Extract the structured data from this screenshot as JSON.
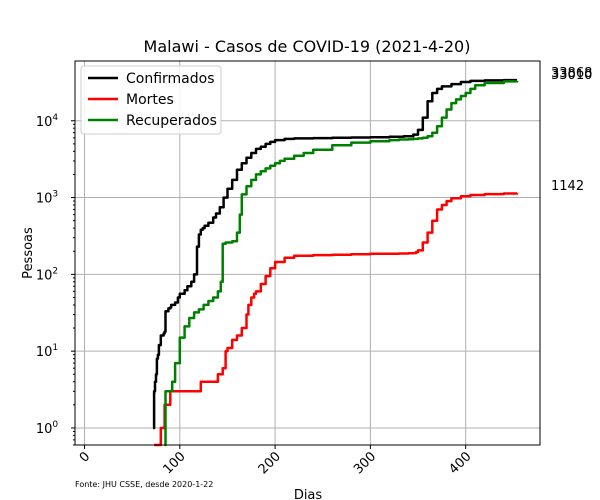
{
  "chart_data": {
    "type": "line",
    "title": "Malawi - Casos de COVID-19 (2021-4-20)",
    "xlabel": "Dias",
    "ylabel": "Pessoas",
    "yscale": "log",
    "xlim": [
      -10,
      478
    ],
    "ylim": [
      0.6,
      60000
    ],
    "grid": true,
    "legend_position": "top-left",
    "x_ticks": [
      0,
      100,
      200,
      300,
      400
    ],
    "x_tick_rotation": 45,
    "y_ticks": [
      {
        "value": 1,
        "base": "10",
        "exp": "0"
      },
      {
        "value": 10,
        "base": "10",
        "exp": "1"
      },
      {
        "value": 100,
        "base": "10",
        "exp": "2"
      },
      {
        "value": 1000,
        "base": "10",
        "exp": "3"
      },
      {
        "value": 10000,
        "base": "10",
        "exp": "4"
      }
    ],
    "series": [
      {
        "name": "Confirmados",
        "color": "#000000",
        "x": [
          72,
          73,
          74,
          75,
          76,
          77,
          78,
          80,
          83,
          84,
          85,
          88,
          90,
          91,
          95,
          98,
          100,
          105,
          108,
          112,
          115,
          118,
          120,
          122,
          124,
          126,
          130,
          135,
          138,
          142,
          146,
          150,
          155,
          160,
          165,
          170,
          175,
          180,
          185,
          190,
          195,
          200,
          210,
          220,
          240,
          260,
          280,
          300,
          320,
          335,
          345,
          350,
          355,
          360,
          365,
          370,
          375,
          385,
          395,
          405,
          420,
          440,
          454
        ],
        "y": [
          1,
          3,
          4,
          5,
          8,
          9,
          12,
          16,
          17,
          18,
          33,
          36,
          37,
          40,
          43,
          50,
          56,
          62,
          70,
          80,
          100,
          230,
          330,
          380,
          400,
          430,
          470,
          550,
          620,
          750,
          1000,
          1300,
          1700,
          2300,
          2800,
          3300,
          3800,
          4300,
          4600,
          5000,
          5300,
          5600,
          5800,
          5900,
          5950,
          6000,
          6050,
          6100,
          6200,
          6300,
          6600,
          7600,
          11000,
          18000,
          23000,
          26000,
          28000,
          30000,
          32000,
          33000,
          33500,
          33800,
          33868
        ]
      },
      {
        "name": "Mortes",
        "color": "#ff0000",
        "x": [
          73,
          80,
          84,
          85,
          90,
          96,
          108,
          115,
          122,
          130,
          140,
          145,
          148,
          150,
          155,
          160,
          165,
          170,
          172,
          175,
          178,
          180,
          185,
          190,
          195,
          200,
          210,
          220,
          240,
          260,
          280,
          300,
          320,
          330,
          340,
          345,
          348,
          350,
          355,
          360,
          365,
          370,
          375,
          380,
          385,
          395,
          405,
          420,
          440,
          454
        ],
        "y": [
          0.6,
          1,
          2,
          2,
          3,
          3,
          3,
          3,
          4,
          4,
          5,
          6,
          10,
          11,
          14,
          16,
          20,
          30,
          40,
          50,
          56,
          60,
          75,
          95,
          120,
          145,
          165,
          175,
          178,
          180,
          183,
          185,
          186,
          187,
          188,
          190,
          195,
          205,
          260,
          350,
          500,
          700,
          800,
          900,
          980,
          1040,
          1080,
          1110,
          1130,
          1142
        ]
      },
      {
        "name": "Recuperados",
        "color": "#008000",
        "x": [
          84,
          85,
          90,
          92,
          95,
          100,
          105,
          110,
          115,
          120,
          125,
          130,
          135,
          140,
          143,
          145,
          148,
          150,
          155,
          160,
          163,
          165,
          170,
          175,
          180,
          185,
          190,
          195,
          200,
          205,
          210,
          220,
          230,
          240,
          260,
          280,
          300,
          320,
          330,
          340,
          345,
          350,
          355,
          360,
          365,
          370,
          375,
          380,
          385,
          390,
          395,
          400,
          405,
          410,
          420,
          440,
          454
        ],
        "y": [
          0.6,
          3,
          3,
          4,
          7,
          15,
          21,
          27,
          32,
          35,
          40,
          45,
          50,
          60,
          80,
          250,
          260,
          260,
          270,
          350,
          600,
          1100,
          1400,
          1700,
          2000,
          2200,
          2400,
          2600,
          2800,
          3000,
          3200,
          3500,
          3800,
          4200,
          4800,
          5200,
          5400,
          5600,
          5700,
          5750,
          5800,
          5900,
          6000,
          6300,
          7000,
          8500,
          11000,
          14000,
          17000,
          19000,
          21000,
          23000,
          26000,
          29000,
          31000,
          32500,
          33010
        ]
      }
    ],
    "annotations": [
      "33868",
      "33010",
      "1142"
    ],
    "source_note": "Fonte: JHU CSSE, desde 2020-1-22"
  }
}
